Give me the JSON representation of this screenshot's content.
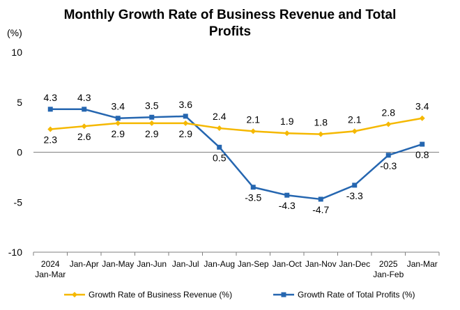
{
  "chart_data": {
    "type": "line",
    "title_line1": "Monthly Growth Rate of Business Revenue and Total",
    "title_line2": "Profits",
    "ylabel": "(%)",
    "ylim": [
      -10,
      10
    ],
    "yticks": [
      10,
      5,
      0,
      -5,
      -10
    ],
    "categories": [
      {
        "line1": "2024",
        "line2": "Jan-Mar"
      },
      {
        "line1": "Jan-Apr",
        "line2": ""
      },
      {
        "line1": "Jan-May",
        "line2": ""
      },
      {
        "line1": "Jan-Jun",
        "line2": ""
      },
      {
        "line1": "Jan-Jul",
        "line2": ""
      },
      {
        "line1": "Jan-Aug",
        "line2": ""
      },
      {
        "line1": "Jan-Sep",
        "line2": ""
      },
      {
        "line1": "Jan-Oct",
        "line2": ""
      },
      {
        "line1": "Jan-Nov",
        "line2": ""
      },
      {
        "line1": "Jan-Dec",
        "line2": ""
      },
      {
        "line1": "2025",
        "line2": "Jan-Feb"
      },
      {
        "line1": "Jan-Mar",
        "line2": ""
      }
    ],
    "series": [
      {
        "name": "Growth Rate of Business Revenue (%)",
        "color": "#f5b800",
        "marker": "diamond",
        "values": [
          2.3,
          2.6,
          2.9,
          2.9,
          2.9,
          2.4,
          2.1,
          1.9,
          1.8,
          2.1,
          2.8,
          3.4
        ],
        "labels": [
          "2.3",
          "2.6",
          "2.9",
          "2.9",
          "2.9",
          "2.4",
          "2.1",
          "1.9",
          "1.8",
          "2.1",
          "2.8",
          "3.4"
        ]
      },
      {
        "name": "Growth Rate of Total Profits (%)",
        "color": "#2566b0",
        "marker": "square",
        "values": [
          4.3,
          4.3,
          3.4,
          3.5,
          3.6,
          0.5,
          -3.5,
          -4.3,
          -4.7,
          -3.3,
          -0.3,
          0.8
        ],
        "labels": [
          "4.3",
          "4.3",
          "3.4",
          "3.5",
          "3.6",
          "0.5",
          "-3.5",
          "-4.3",
          "-4.7",
          "-3.3",
          "-0.3",
          "0.8"
        ]
      }
    ],
    "legend_position": "bottom",
    "grid": false
  }
}
